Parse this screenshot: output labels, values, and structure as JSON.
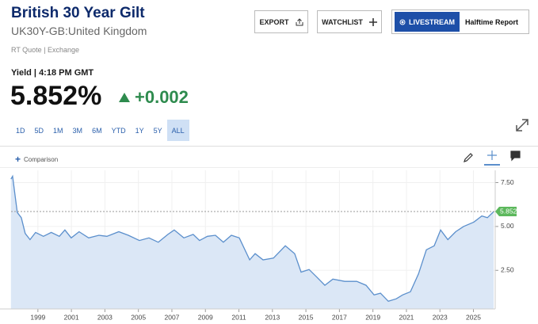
{
  "header": {
    "title": "British 30 Year Gilt",
    "subtitle": "UK30Y-GB:United Kingdom",
    "source": "RT Quote | Exchange",
    "yield_label": "Yield | 4:18 PM GMT",
    "price": "5.852%",
    "change": "+0.002"
  },
  "buttons": {
    "export": "EXPORT",
    "watchlist": "WATCHLIST",
    "livestream": "LIVESTREAM",
    "halftime": "Halftime Report"
  },
  "ranges": [
    "1D",
    "5D",
    "1M",
    "3M",
    "6M",
    "YTD",
    "1Y",
    "5Y",
    "ALL"
  ],
  "comparison": "Comparison",
  "chart_data": {
    "type": "area",
    "color": "#5b8fcc",
    "fill": "#dbe7f6",
    "grid": true,
    "current_value": 5.852,
    "current_color": "#5cb85c",
    "x": [
      1997.39,
      1997.49,
      1997.77,
      1998.01,
      1998.24,
      1998.53,
      1998.86,
      1999.33,
      1999.8,
      2000.28,
      2000.61,
      2000.99,
      2001.46,
      2002.03,
      2002.64,
      2003.12,
      2003.83,
      2004.4,
      2005.06,
      2005.63,
      2006.19,
      2006.76,
      2007.14,
      2007.71,
      2008.27,
      2008.65,
      2009.12,
      2009.6,
      2010.07,
      2010.55,
      2011.02,
      2011.64,
      2011.97,
      2012.44,
      2013.06,
      2013.77,
      2014.33,
      2014.71,
      2015.19,
      2015.66,
      2016.13,
      2016.61,
      2017.32,
      2018.03,
      2018.59,
      2019.07,
      2019.45,
      2019.92,
      2020.39,
      2020.77,
      2021.24,
      2021.72,
      2022.19,
      2022.66,
      2023.04,
      2023.47,
      2023.94,
      2024.41,
      2025.03,
      2025.5,
      2025.83,
      2026.21
    ],
    "values": [
      7.7,
      7.86,
      5.8,
      5.5,
      4.6,
      4.25,
      4.66,
      4.44,
      4.66,
      4.44,
      4.8,
      4.35,
      4.7,
      4.35,
      4.5,
      4.44,
      4.7,
      4.5,
      4.2,
      4.35,
      4.1,
      4.55,
      4.8,
      4.35,
      4.55,
      4.2,
      4.44,
      4.5,
      4.1,
      4.5,
      4.35,
      3.1,
      3.45,
      3.1,
      3.2,
      3.9,
      3.45,
      2.4,
      2.55,
      2.1,
      1.65,
      2.0,
      1.87,
      1.87,
      1.65,
      1.1,
      1.2,
      0.74,
      0.88,
      1.1,
      1.28,
      2.3,
      3.67,
      3.9,
      4.8,
      4.25,
      4.7,
      5.0,
      5.25,
      5.6,
      5.5,
      5.85
    ],
    "xlim": [
      1997.4,
      2026.3
    ],
    "xticks": [
      1999,
      2001,
      2003,
      2005,
      2007,
      2009,
      2011,
      2013,
      2015,
      2017,
      2019,
      2021,
      2023,
      2025
    ],
    "ylim": [
      0.3,
      8.2
    ],
    "yticks": [
      {
        "value": 2.5,
        "label": "2.50"
      },
      {
        "value": 5,
        "label": "5.00"
      },
      {
        "value": 7.5,
        "label": "7.50"
      }
    ]
  }
}
